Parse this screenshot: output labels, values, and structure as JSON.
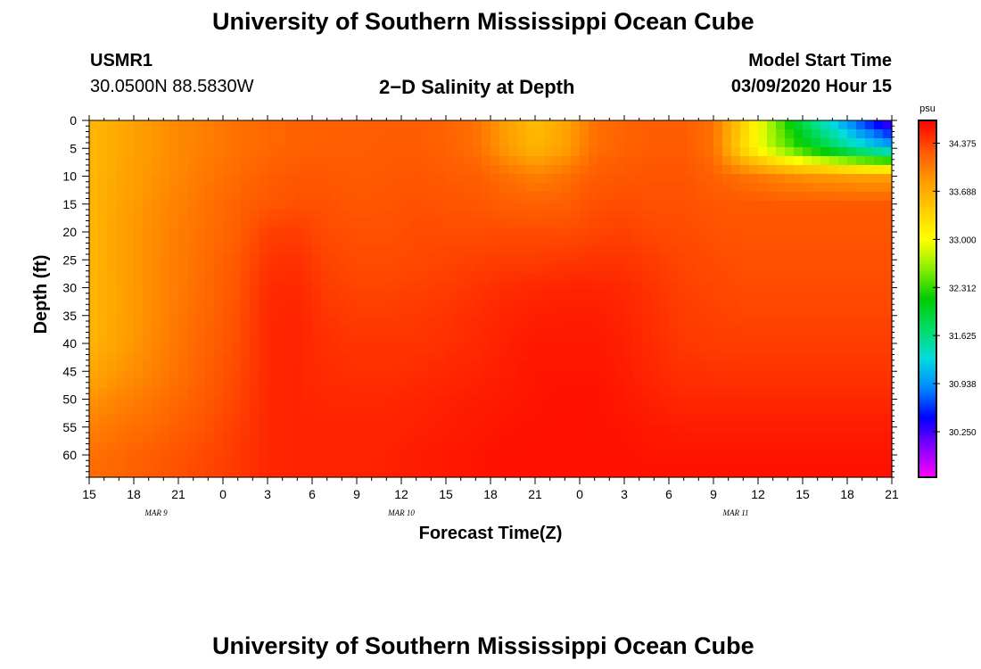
{
  "page": {
    "title_top": "University of Southern Mississippi Ocean Cube",
    "title_bottom": "University of Southern Mississippi Ocean Cube",
    "station_id": "USMR1",
    "station_coords": "30.0500N 88.5830W",
    "plot_name": "2−D Salinity at Depth",
    "model_label": "Model Start Time",
    "model_time": "03/09/2020 Hour 15"
  },
  "chart_data": {
    "type": "heatmap",
    "title": "2−D Salinity at Depth",
    "xlabel": "Forecast Time(Z)",
    "ylabel": "Depth (ft)",
    "x_tick_labels": [
      "15",
      "18",
      "21",
      "0",
      "3",
      "6",
      "9",
      "12",
      "15",
      "18",
      "21",
      "0",
      "3",
      "6",
      "9",
      "12",
      "15",
      "18",
      "21"
    ],
    "x_range_hours": [
      0,
      54
    ],
    "x_tick_step_hours": 3,
    "date_labels": [
      {
        "label": "MAR 9",
        "hour": 4.5
      },
      {
        "label": "MAR 10",
        "hour": 21
      },
      {
        "label": "MAR 11",
        "hour": 43.5
      }
    ],
    "y_ticks": [
      0,
      5,
      10,
      15,
      20,
      25,
      30,
      35,
      40,
      45,
      50,
      55,
      60
    ],
    "ylim": [
      0,
      64
    ],
    "y_inverted": true,
    "colorbar": {
      "unit": "psu",
      "tick_values": [
        34.375,
        33.688,
        33.0,
        32.312,
        31.625,
        30.938,
        30.25
      ],
      "tick_labels": [
        "34.375",
        "33.688",
        "33.000",
        "32.312",
        "31.625",
        "30.938",
        "30.250"
      ],
      "range": [
        29.6,
        34.7
      ],
      "colors": [
        "#ff00ff",
        "#8800ff",
        "#0000ff",
        "#0088ff",
        "#00dddd",
        "#00dd66",
        "#00cc00",
        "#88ee00",
        "#ffff00",
        "#ffcc00",
        "#ff9900",
        "#ff5500",
        "#ff0000"
      ]
    },
    "salinity_grid": {
      "hours": [
        0,
        2,
        4,
        6,
        8,
        10,
        12,
        14,
        16,
        18,
        20,
        22,
        24,
        26,
        28,
        30,
        32,
        34,
        36,
        38,
        40,
        42,
        44,
        46,
        48,
        50,
        52,
        54
      ],
      "depths": [
        0,
        5,
        10,
        15,
        20,
        25,
        30,
        35,
        40,
        45,
        50,
        55,
        60,
        64
      ],
      "values": [
        [
          33.6,
          33.72,
          33.85,
          33.95,
          34.02,
          34.1,
          34.16,
          34.2,
          34.2,
          34.2,
          34.22,
          34.22,
          34.18,
          34.1,
          33.8,
          33.55,
          33.75,
          34.1,
          34.18,
          34.22,
          34.22,
          34.1,
          33.4,
          32.6,
          31.8,
          31.2,
          30.6,
          30.1
        ],
        [
          33.6,
          33.72,
          33.85,
          33.95,
          34.02,
          34.1,
          34.16,
          34.2,
          34.22,
          34.22,
          34.24,
          34.24,
          34.2,
          34.12,
          33.85,
          33.62,
          33.8,
          34.12,
          34.2,
          34.24,
          34.24,
          34.1,
          33.3,
          32.7,
          32.2,
          31.8,
          31.4,
          31.1
        ],
        [
          33.6,
          33.74,
          33.87,
          33.97,
          34.06,
          34.15,
          34.22,
          34.26,
          34.26,
          34.24,
          34.25,
          34.27,
          34.24,
          34.22,
          34.12,
          34.02,
          34.1,
          34.24,
          34.26,
          34.28,
          34.28,
          34.2,
          34.1,
          34.0,
          33.9,
          33.85,
          33.8,
          33.8
        ],
        [
          33.6,
          33.76,
          33.9,
          34.0,
          34.1,
          34.2,
          34.26,
          34.3,
          34.3,
          34.26,
          34.28,
          34.3,
          34.28,
          34.27,
          34.22,
          34.2,
          34.22,
          34.3,
          34.32,
          34.3,
          34.3,
          34.27,
          34.25,
          34.25,
          34.25,
          34.25,
          34.25,
          34.25
        ],
        [
          33.6,
          33.78,
          33.92,
          34.02,
          34.12,
          34.22,
          34.38,
          34.4,
          34.32,
          34.3,
          34.3,
          34.32,
          34.32,
          34.32,
          34.32,
          34.32,
          34.32,
          34.36,
          34.38,
          34.34,
          34.32,
          34.3,
          34.28,
          34.28,
          34.28,
          34.28,
          34.28,
          34.28
        ],
        [
          33.6,
          33.78,
          33.92,
          34.04,
          34.14,
          34.26,
          34.44,
          34.46,
          34.36,
          34.32,
          34.32,
          34.34,
          34.36,
          34.38,
          34.4,
          34.4,
          34.42,
          34.44,
          34.44,
          34.4,
          34.35,
          34.32,
          34.3,
          34.3,
          34.3,
          34.3,
          34.3,
          34.3
        ],
        [
          33.6,
          33.76,
          33.92,
          34.04,
          34.16,
          34.28,
          34.48,
          34.5,
          34.4,
          34.36,
          34.36,
          34.38,
          34.4,
          34.44,
          34.48,
          34.5,
          34.52,
          34.52,
          34.5,
          34.44,
          34.38,
          34.35,
          34.32,
          34.32,
          34.32,
          34.32,
          34.32,
          34.32
        ],
        [
          33.6,
          33.76,
          33.92,
          34.06,
          34.18,
          34.3,
          34.5,
          34.52,
          34.44,
          34.4,
          34.4,
          34.42,
          34.44,
          34.48,
          34.52,
          34.55,
          34.56,
          34.56,
          34.52,
          34.46,
          34.4,
          34.38,
          34.36,
          34.36,
          34.36,
          34.36,
          34.36,
          34.36
        ],
        [
          33.62,
          33.78,
          33.94,
          34.08,
          34.2,
          34.32,
          34.5,
          34.52,
          34.46,
          34.44,
          34.44,
          34.44,
          34.46,
          34.5,
          34.54,
          34.58,
          34.58,
          34.58,
          34.54,
          34.48,
          34.42,
          34.4,
          34.4,
          34.4,
          34.4,
          34.4,
          34.4,
          34.4
        ],
        [
          33.72,
          33.86,
          33.98,
          34.1,
          34.22,
          34.34,
          34.5,
          34.52,
          34.48,
          34.46,
          34.46,
          34.48,
          34.5,
          34.52,
          34.56,
          34.6,
          34.6,
          34.6,
          34.56,
          34.5,
          34.46,
          34.45,
          34.44,
          34.44,
          34.44,
          34.44,
          34.44,
          34.44
        ],
        [
          33.88,
          33.98,
          34.06,
          34.16,
          34.26,
          34.36,
          34.5,
          34.52,
          34.5,
          34.5,
          34.5,
          34.52,
          34.54,
          34.56,
          34.58,
          34.6,
          34.62,
          34.62,
          34.58,
          34.54,
          34.5,
          34.5,
          34.5,
          34.5,
          34.5,
          34.5,
          34.5,
          34.5
        ],
        [
          34.0,
          34.08,
          34.14,
          34.22,
          34.3,
          34.4,
          34.5,
          34.52,
          34.52,
          34.52,
          34.52,
          34.54,
          34.56,
          34.58,
          34.6,
          34.62,
          34.62,
          34.62,
          34.6,
          34.58,
          34.56,
          34.56,
          34.56,
          34.56,
          34.56,
          34.56,
          34.56,
          34.56
        ],
        [
          34.1,
          34.16,
          34.22,
          34.28,
          34.34,
          34.42,
          34.5,
          34.52,
          34.52,
          34.52,
          34.54,
          34.56,
          34.58,
          34.6,
          34.62,
          34.62,
          34.62,
          34.62,
          34.62,
          34.6,
          34.6,
          34.6,
          34.6,
          34.6,
          34.6,
          34.6,
          34.6,
          34.6
        ],
        [
          34.14,
          34.18,
          34.24,
          34.3,
          34.36,
          34.42,
          34.5,
          34.52,
          34.52,
          34.52,
          34.54,
          34.56,
          34.58,
          34.6,
          34.62,
          34.62,
          34.62,
          34.62,
          34.62,
          34.62,
          34.62,
          34.62,
          34.62,
          34.62,
          34.62,
          34.62,
          34.62,
          34.62
        ]
      ]
    },
    "legend": "colorbar-right",
    "grid": false
  }
}
